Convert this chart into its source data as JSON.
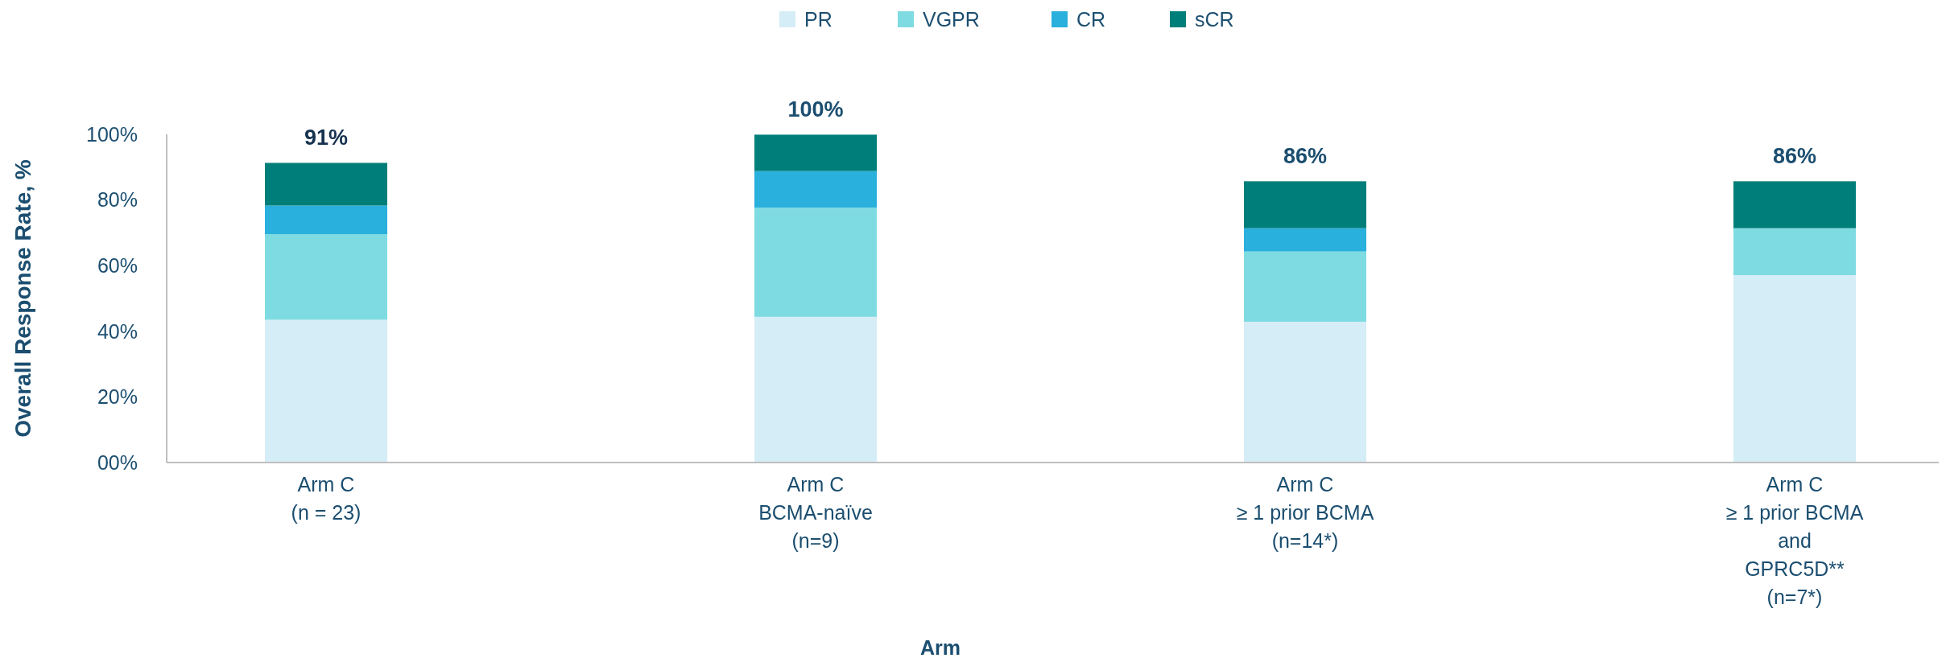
{
  "chart_data": {
    "type": "bar",
    "stacked": true,
    "ylabel": "Overall Response Rate, %",
    "xlabel": "Arm",
    "categories": [
      "Arm C\n(n = 23)",
      "Arm C\nBCMA-naïve\n(n=9)",
      "Arm C\n≥ 1 prior BCMA\n(n=14*)",
      "Arm C\n≥ 1 prior BCMA\nand\nGPRC5D**\n(n=7*)"
    ],
    "series": [
      {
        "name": "PR",
        "color": "#d5edf6",
        "values": [
          43.5,
          44.4,
          42.9,
          57.1
        ]
      },
      {
        "name": "VGPR",
        "color": "#7fdbe2",
        "values": [
          26.1,
          33.3,
          21.4,
          14.3
        ]
      },
      {
        "name": "CR",
        "color": "#29b0dc",
        "values": [
          8.7,
          11.1,
          7.1,
          0
        ]
      },
      {
        "name": "sCR",
        "color": "#007f7a",
        "values": [
          13.0,
          11.1,
          14.3,
          14.3
        ]
      }
    ],
    "totals": [
      "91%",
      "100%",
      "86%",
      "86%"
    ],
    "ylim": [
      0,
      100
    ],
    "yticks": [
      {
        "value": 0,
        "label": "00%"
      },
      {
        "value": 20,
        "label": "20%"
      },
      {
        "value": 40,
        "label": "40%"
      },
      {
        "value": 60,
        "label": "60%"
      },
      {
        "value": 80,
        "label": "80%"
      },
      {
        "value": 100,
        "label": "100%"
      }
    ],
    "grid": false,
    "legend": "top"
  }
}
